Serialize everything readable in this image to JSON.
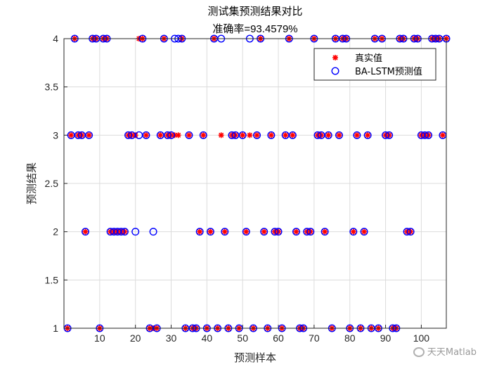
{
  "chart_data": {
    "type": "scatter",
    "title": "测试集预测结果对比",
    "subtitle": "准确率=93.4579%",
    "xlabel": "预测样本",
    "ylabel": "预测结果",
    "xlim": [
      0,
      107
    ],
    "ylim": [
      1,
      4
    ],
    "xticks": [
      10,
      20,
      30,
      40,
      50,
      60,
      70,
      80,
      90,
      100
    ],
    "yticks": [
      1,
      1.5,
      2,
      2.5,
      3,
      3.5,
      4
    ],
    "ytick_labels": [
      "1",
      "1.5",
      "2",
      "2.5",
      "3",
      "3.5",
      "4"
    ],
    "grid": true,
    "legend_position": "top-right",
    "series": [
      {
        "name": "真实值",
        "marker": "asterisk",
        "color": "#ff0000",
        "x": [
          1,
          2,
          3,
          4,
          5,
          6,
          7,
          8,
          9,
          10,
          11,
          12,
          13,
          14,
          15,
          16,
          17,
          18,
          19,
          20,
          21,
          22,
          23,
          24,
          25,
          26,
          27,
          28,
          29,
          30,
          31,
          32,
          33,
          34,
          35,
          36,
          37,
          38,
          39,
          40,
          41,
          42,
          43,
          44,
          45,
          46,
          47,
          48,
          49,
          50,
          51,
          52,
          53,
          54,
          55,
          56,
          57,
          58,
          59,
          60,
          61,
          62,
          63,
          64,
          65,
          66,
          67,
          68,
          69,
          70,
          71,
          72,
          73,
          74,
          75,
          76,
          77,
          78,
          79,
          80,
          81,
          82,
          83,
          84,
          85,
          86,
          87,
          88,
          89,
          90,
          91,
          92,
          93,
          94,
          95,
          96,
          97,
          98,
          99,
          100,
          101,
          102,
          103,
          104,
          105,
          106,
          107
        ],
        "y": [
          1,
          3,
          4,
          3,
          3,
          2,
          3,
          4,
          4,
          1,
          4,
          4,
          2,
          2,
          2,
          2,
          2,
          3,
          3,
          3,
          4,
          4,
          3,
          1,
          1,
          1,
          3,
          4,
          3,
          3,
          3,
          3,
          4,
          1,
          3,
          1,
          1,
          2,
          3,
          1,
          2,
          4,
          1,
          3,
          2,
          1,
          3,
          3,
          1,
          3,
          2,
          3,
          1,
          3,
          4,
          2,
          1,
          3,
          2,
          2,
          1,
          3,
          4,
          3,
          2,
          1,
          1,
          2,
          2,
          4,
          3,
          3,
          2,
          3,
          1,
          4,
          3,
          4,
          4,
          1,
          2,
          3,
          1,
          2,
          3,
          1,
          4,
          1,
          4,
          3,
          3,
          1,
          1,
          4,
          4,
          2,
          2,
          4,
          4,
          3,
          3,
          3,
          4,
          4,
          4,
          3,
          4
        ]
      },
      {
        "name": "BA-LSTM预测值",
        "marker": "circle",
        "color": "#0000ff",
        "x": [
          1,
          2,
          3,
          4,
          5,
          6,
          7,
          8,
          9,
          10,
          11,
          12,
          13,
          14,
          15,
          16,
          17,
          18,
          19,
          20,
          21,
          22,
          23,
          24,
          25,
          26,
          27,
          28,
          29,
          30,
          31,
          32,
          33,
          34,
          35,
          36,
          37,
          38,
          39,
          40,
          41,
          42,
          43,
          44,
          45,
          46,
          47,
          48,
          49,
          50,
          51,
          52,
          53,
          54,
          55,
          56,
          57,
          58,
          59,
          60,
          61,
          62,
          63,
          64,
          65,
          66,
          67,
          68,
          69,
          70,
          71,
          72,
          73,
          74,
          75,
          76,
          77,
          78,
          79,
          80,
          81,
          82,
          83,
          84,
          85,
          86,
          87,
          88,
          89,
          90,
          91,
          92,
          93,
          94,
          95,
          96,
          97,
          98,
          99,
          100,
          101,
          102,
          103,
          104,
          105,
          106,
          107
        ],
        "y": [
          1,
          3,
          4,
          3,
          3,
          2,
          3,
          4,
          4,
          1,
          4,
          4,
          2,
          2,
          2,
          2,
          2,
          3,
          3,
          2,
          3,
          4,
          3,
          1,
          2,
          1,
          3,
          4,
          3,
          3,
          4,
          4,
          4,
          1,
          3,
          1,
          1,
          2,
          3,
          1,
          2,
          4,
          1,
          4,
          2,
          1,
          3,
          3,
          1,
          3,
          2,
          4,
          1,
          3,
          4,
          2,
          1,
          3,
          2,
          2,
          1,
          3,
          4,
          3,
          2,
          1,
          1,
          2,
          2,
          4,
          3,
          3,
          2,
          3,
          1,
          4,
          3,
          4,
          4,
          1,
          2,
          3,
          1,
          2,
          3,
          1,
          4,
          1,
          4,
          3,
          3,
          1,
          1,
          4,
          4,
          2,
          2,
          4,
          4,
          3,
          3,
          3,
          4,
          4,
          4,
          3,
          4
        ]
      }
    ]
  },
  "watermark": {
    "text": "天天Matlab"
  }
}
